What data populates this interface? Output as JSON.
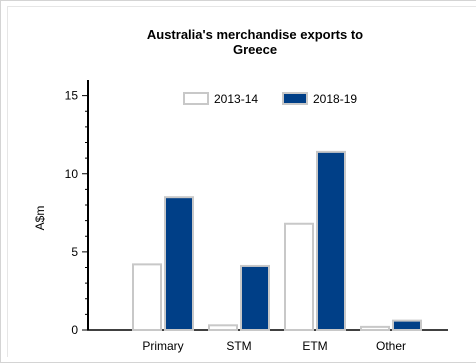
{
  "chart_data": {
    "type": "bar",
    "title": "Australia's merchandise exports to Greece",
    "title_lines": [
      "Australia's merchandise exports to",
      "Greece"
    ],
    "xlabel": "",
    "ylabel": "A$m",
    "categories": [
      "Primary",
      "STM",
      "ETM",
      "Other"
    ],
    "ylim": [
      0,
      16
    ],
    "yticks": [
      0,
      5,
      10,
      15
    ],
    "grid": false,
    "legend_position": "top-center",
    "series": [
      {
        "name": "2013-14",
        "values": [
          4.2,
          0.3,
          6.8,
          0.2
        ],
        "fill": "#ffffff",
        "stroke": "#c8c8c8"
      },
      {
        "name": "2018-19",
        "values": [
          8.5,
          4.1,
          11.4,
          0.6
        ],
        "fill": "#003f87",
        "stroke": "#c8c8c8"
      }
    ]
  }
}
